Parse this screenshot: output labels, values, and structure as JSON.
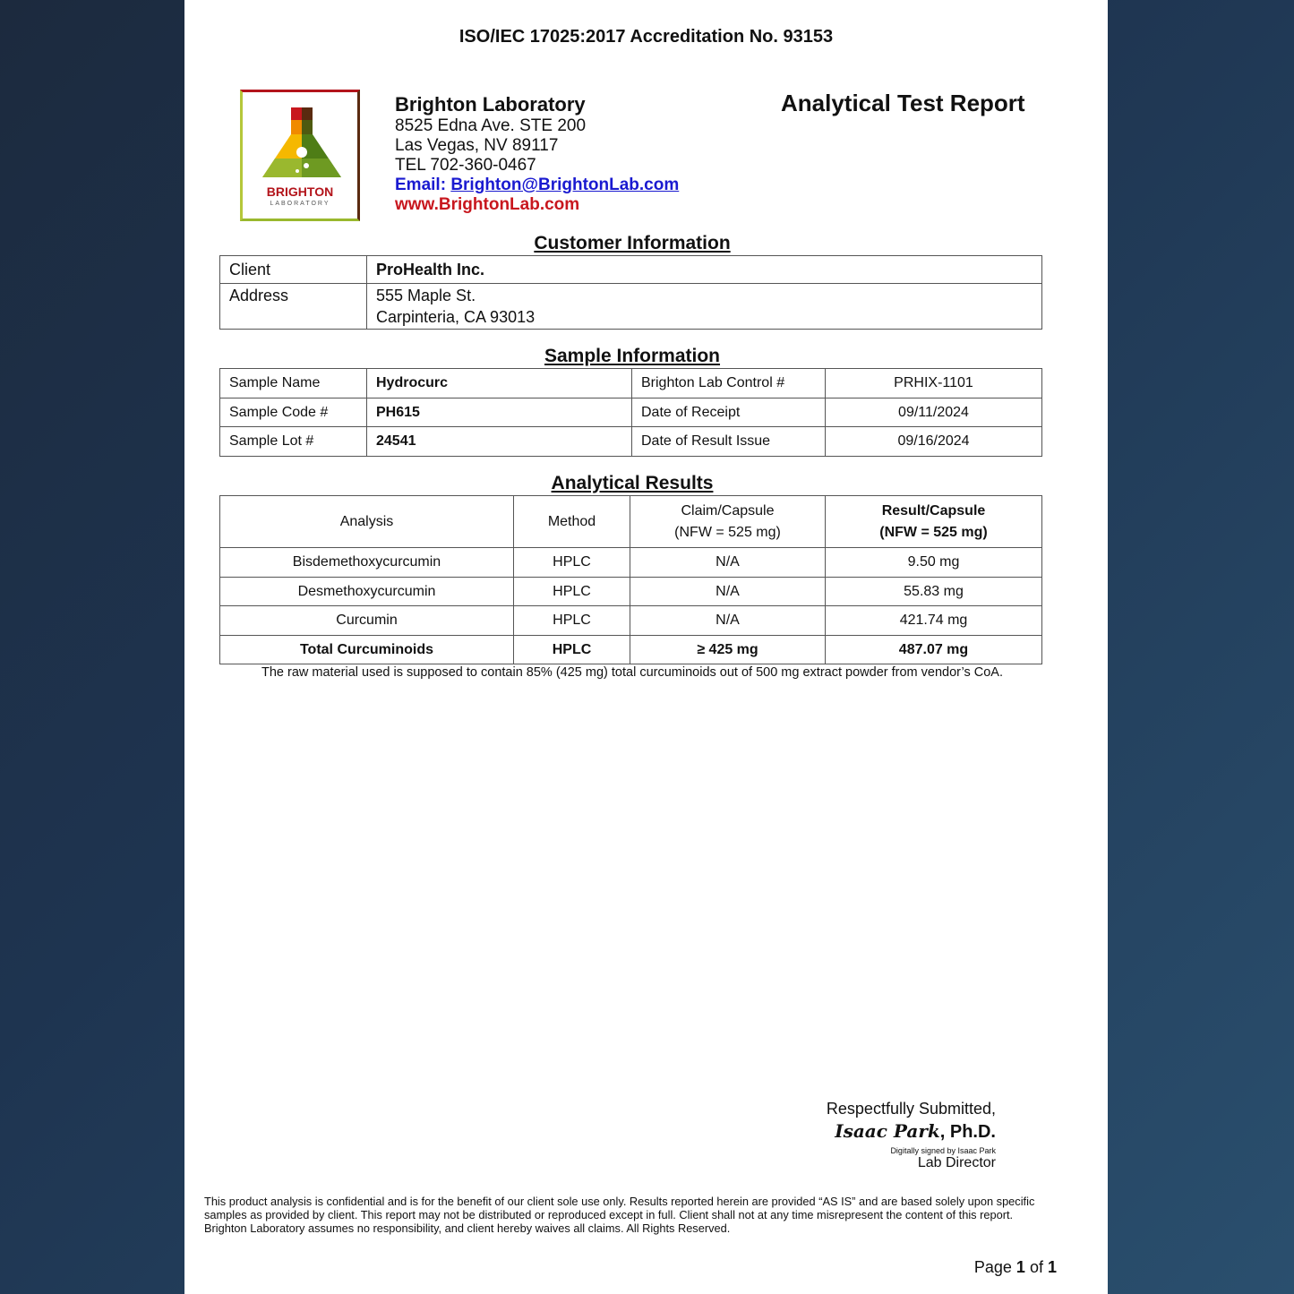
{
  "accreditation": "ISO/IEC 17025:2017 Accreditation No. 93153",
  "logo": {
    "name": "BRIGHTON",
    "sub": "LABORATORY",
    "colors": [
      "#c8171e",
      "#5a2a10",
      "#f08a00",
      "#9ab82e",
      "#4e7d16"
    ]
  },
  "lab": {
    "name": "Brighton Laboratory",
    "address1": "8525 Edna Ave. STE 200",
    "address2": "Las Vegas, NV 89117",
    "tel": "TEL 702-360-0467",
    "email_label": "Email:",
    "email": "Brighton@BrightonLab.com",
    "website": "www.BrightonLab.com"
  },
  "report_title": "Analytical Test Report",
  "customer": {
    "heading": "Customer Information",
    "client_label": "Client",
    "client": "ProHealth Inc.",
    "address_label": "Address",
    "address1": "555 Maple St.",
    "address2": "Carpinteria, CA 93013"
  },
  "sample": {
    "heading": "Sample Information",
    "rows": [
      {
        "l1": "Sample Name",
        "v1": "Hydrocurc",
        "l2": "Brighton Lab Control #",
        "v2": "PRHIX-1101"
      },
      {
        "l1": "Sample Code #",
        "v1": "PH615",
        "l2": "Date of Receipt",
        "v2": "09/11/2024"
      },
      {
        "l1": "Sample Lot #",
        "v1": "24541",
        "l2": "Date of Result Issue",
        "v2": "09/16/2024"
      }
    ]
  },
  "results": {
    "heading": "Analytical Results",
    "headers": [
      "Analysis",
      "Method",
      "Claim/Capsule",
      "(NFW = 525 mg)",
      "Result/Capsule",
      "(NFW = 525 mg)"
    ],
    "rows": [
      [
        "Bisdemethoxycurcumin",
        "HPLC",
        "N/A",
        "9.50 mg"
      ],
      [
        "Desmethoxycurcumin",
        "HPLC",
        "N/A",
        "55.83 mg"
      ],
      [
        "Curcumin",
        "HPLC",
        "N/A",
        "421.74 mg"
      ],
      [
        "Total Curcuminoids",
        "HPLC",
        "≥ 425 mg",
        "487.07 mg"
      ]
    ],
    "note": "The raw material used is supposed to contain 85% (425 mg) total curcuminoids out of 500 mg extract powder from vendor’s CoA."
  },
  "signature": {
    "line1": "Respectfully Submitted,",
    "name": "Isaac Park",
    "suffix": ", Ph.D.",
    "digital": "Digitally signed by Isaac Park",
    "role": "Lab Director"
  },
  "footer": "This product analysis is confidential and is for the benefit of our client sole use only. Results reported herein are provided “AS IS” and are based solely upon specific samples as provided by client. This report may not be distributed or reproduced except in full. Client shall not at any time misrepresent the content of this report. Brighton Laboratory assumes no responsibility, and client hereby waives all claims. All Rights Reserved.",
  "page": {
    "prefix": "Page",
    "current": "1",
    "of": "of",
    "total": "1"
  }
}
